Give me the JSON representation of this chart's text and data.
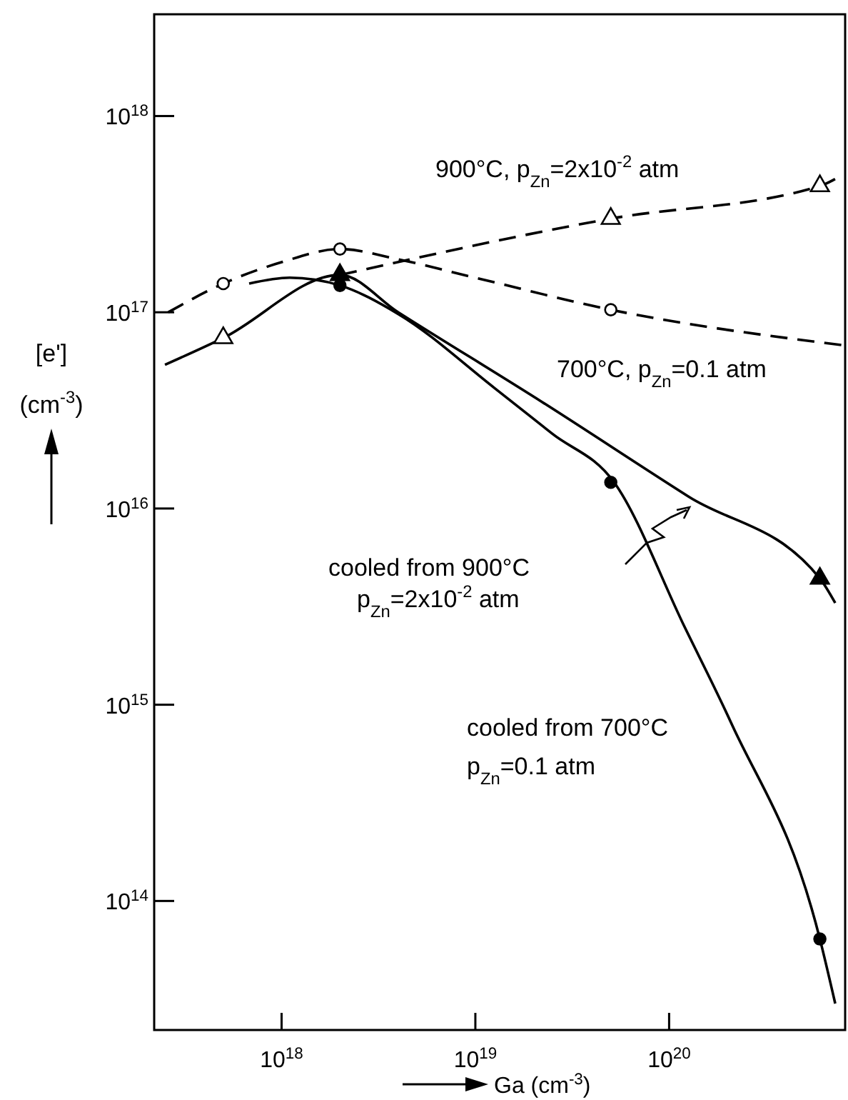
{
  "chart_data": {
    "type": "line",
    "xlabel": "Ga (cm$^{-3}$)",
    "ylabel": "[e']\n(cm$^{-3}$)",
    "log": "xy",
    "xlim": [
      2.2e+17,
      8.1e+20
    ],
    "ylim": [
      22000000000000.0,
      3.3e+18
    ],
    "xticks": [
      {
        "value": 1e+18,
        "label": "10$^{18}$"
      },
      {
        "value": 1e+19,
        "label": "10$^{19}$"
      },
      {
        "value": 1e+20,
        "label": "10$^{20}$"
      }
    ],
    "yticks": [
      {
        "value": 100000000000000.0,
        "label": "10$^{14}$"
      },
      {
        "value": 1000000000000000.0,
        "label": "10$^{15}$"
      },
      {
        "value": 1e+16,
        "label": "10$^{16}$"
      },
      {
        "value": 1e+17,
        "label": "10$^{17}$"
      },
      {
        "value": 1e+18,
        "label": "10$^{18}$"
      }
    ],
    "grid": false,
    "series": [
      {
        "line_style": "dashed",
        "color": "#000000",
        "x": [
          2e+18,
          5e+19,
          6e+20,
          7.8e+20
        ],
        "values": [
          1.55e+17,
          3e+17,
          4.4e+17,
          5e+17
        ]
      },
      {
        "line_style": "dashed",
        "color": "#000000",
        "x": [
          2.6e+17,
          5e+17,
          1e+18,
          2e+18,
          4e+18,
          1e+19,
          5e+19,
          7.8e+20
        ],
        "values": [
          1e+17,
          1.4e+17,
          1.8e+17,
          2.1e+17,
          1.86e+17,
          1.5e+17,
          1.03e+17,
          6.8e+16
        ]
      },
      {
        "line_style": "solid",
        "color": "#000000",
        "x": [
          2.5e+17,
          5e+17,
          2e+18,
          4e+18,
          2.2e+19,
          1.26e+20,
          6e+20,
          7.2e+20
        ],
        "values": [
          5.4e+16,
          7.4e+16,
          1.55e+17,
          1e+17,
          3.5e+16,
          1.15e+16,
          4400000000000000.0,
          3300000000000000.0
        ]
      },
      {
        "line_style": "solid",
        "color": "#000000",
        "x": [
          6.8e+17,
          1.1e+18,
          2e+18,
          4e+18,
          1.26e+19,
          2.5e+19,
          5.2e+19,
          1.2e+20,
          2.1e+20,
          6e+20,
          7.2e+20
        ],
        "values": [
          1.4e+17,
          1.5e+17,
          1.37e+17,
          9.8e+16,
          4.1e+16,
          2.4e+16,
          1.36e+16,
          2500000000000000.0,
          800000000000000.0,
          64000000000000.0,
          30000000000000.0
        ]
      },
      {
        "type": "scatter",
        "marker": "triangle",
        "color": "#ffffff",
        "x": [
          5e+17,
          5e+19,
          6e+20
        ],
        "values": [
          7.4e+16,
          3e+17,
          4.4e+17
        ]
      },
      {
        "type": "scatter",
        "marker": "circle",
        "color": "#ffffff",
        "x": [
          5e+17,
          2e+18,
          5e+19
        ],
        "values": [
          1.4e+17,
          2.1e+17,
          1.03e+17
        ]
      },
      {
        "type": "scatter",
        "marker": "triangle",
        "color": "#000000",
        "x": [
          2e+18,
          6e+20
        ],
        "values": [
          1.55e+17,
          4400000000000000.0
        ]
      },
      {
        "type": "scatter",
        "marker": "circle",
        "color": "#000000",
        "x": [
          2e+18,
          5e+19,
          6e+20
        ],
        "values": [
          1.37e+17,
          1.36e+16,
          64000000000000.0
        ]
      }
    ],
    "annotations": [
      "900°C, p$_{Zn}$=2x10$^{-2}$ atm",
      "700°C, p$_{Zn}$=0.1 atm",
      "cooled from 900°C",
      "p$_{Zn}$=2x10$^{-2}$ atm",
      "cooled from 700°C",
      "p$_{Zn}$=0.1 atm"
    ]
  }
}
